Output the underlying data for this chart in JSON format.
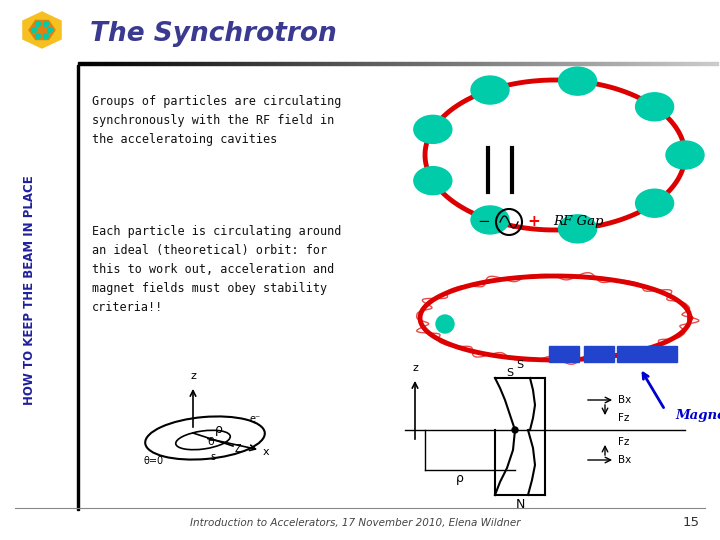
{
  "title": "The Synchrotron",
  "sidebar_text": "HOW TO KEEP THE BEAM IN PLACE",
  "text1": "Groups of particles are circulating\nsynchronously with the RF field in\nthe acceleratoing cavities",
  "text2": "Each particle is circulating around\nan ideal (theoretical) orbit: for\nthis to work out, acceleration and\nmagnet fields must obey stability\ncriteria!!",
  "rf_gap_label": "RF Gap",
  "magnet_label": "Magnet",
  "footer": "Introduction to Accelerators, 17 November 2010, Elena Wildner",
  "page_number": "15",
  "bg_color": "#ffffff",
  "title_color": "#3a3a90",
  "sidebar_color": "#2020a0",
  "teal_color": "#00ccaa",
  "red_color": "#dd0000",
  "blue_rect_color": "#2244cc",
  "magnet_arrow_color": "#0000cc"
}
